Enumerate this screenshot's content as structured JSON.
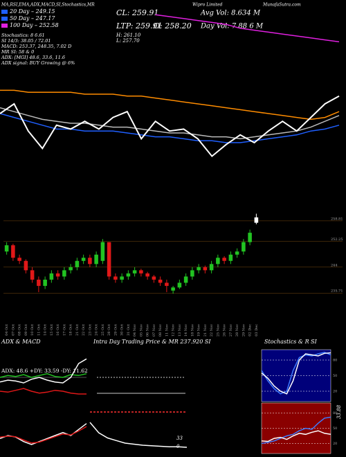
{
  "header": {
    "top_line": "MA,RSI,EMA,ADX,MACD,SI,Stochastics,MR",
    "company": "Wipro Limited",
    "site": "MunafaSutra.com",
    "legend": [
      {
        "label": "20 Day – 249.15",
        "color": "#1f5fff"
      },
      {
        "label": "50 Day – 247.17",
        "color": "#1f5fff"
      },
      {
        "label": "100 Day – 252.58",
        "color": "#e020e0"
      }
    ],
    "stats": [
      "Stochastics: 8      6.61",
      "SI 14/3: 38.05 / 72.01",
      "MACD: 253.37, 248.35, 7.02 D",
      "MR  SI: 58 & 0",
      "ADX: [MGI] 48.6, 33.6, 11.6",
      "ADX signal:          BUY Growing @ 6%"
    ],
    "cl": "CL: 259.91",
    "ltp": "LTP: 259.91",
    "open": "O: 258.20",
    "high": "H: 261.10",
    "low": "L: 257.70",
    "avg_vol": "Avg Vol: 8.634  M",
    "day_vol": "Day Vol: 7.88          6  M"
  },
  "chart_data": [
    {
      "type": "line",
      "ylim": [
        0,
        100
      ],
      "series": [
        {
          "color": "#e020e0",
          "values": [
            null,
            null,
            null,
            null,
            null,
            null,
            null,
            null,
            null,
            null,
            null,
            96,
            95,
            94,
            93,
            92,
            91,
            89,
            88,
            87,
            86,
            85,
            84,
            83,
            82
          ]
        },
        {
          "color": "#ff8c00",
          "values": [
            57,
            57,
            56,
            56,
            56,
            56,
            55,
            55,
            55,
            54,
            54,
            53,
            52,
            51,
            50,
            49,
            48,
            47,
            46,
            45,
            44,
            43,
            42,
            43,
            46
          ]
        },
        {
          "color": "#bbbbbb",
          "values": [
            48,
            46,
            44,
            42,
            41,
            40,
            40,
            39,
            38,
            38,
            37,
            36,
            35,
            35,
            34,
            33,
            33,
            32,
            33,
            34,
            35,
            36,
            38,
            41,
            44
          ]
        },
        {
          "color": "#1f5fff",
          "values": [
            45,
            43,
            41,
            39,
            37,
            37,
            36,
            36,
            36,
            35,
            34,
            33,
            33,
            32,
            31,
            31,
            30,
            30,
            31,
            32,
            33,
            34,
            36,
            37,
            39
          ]
        },
        {
          "color": "#ffffff",
          "values": [
            45,
            50,
            36,
            27,
            39,
            37,
            41,
            37,
            43,
            46,
            32,
            41,
            36,
            37,
            32,
            23,
            29,
            34,
            30,
            36,
            41,
            36,
            43,
            50,
            54
          ]
        }
      ]
    },
    {
      "type": "candlestick",
      "ylim": [
        232,
        263
      ],
      "yticks": [
        258.81,
        252.25,
        244,
        235.71
      ],
      "up_color": "#22c322",
      "down_color": "#e01818",
      "last_color": "#ffffff",
      "categories": [
        "04 Oct",
        "07 Oct",
        "08 Oct",
        "09 Oct",
        "10 Oct",
        "11 Oct",
        "14 Oct",
        "15 Oct",
        "16 Oct",
        "17 Oct",
        "18 Oct",
        "21 Oct",
        "22 Oct",
        "23 Oct",
        "24 Oct",
        "25 Oct",
        "28 Oct",
        "29 Oct",
        "30 Oct",
        "31 Oct",
        "04 Nov",
        "05 Nov",
        "06 Nov",
        "07 Nov",
        "08 Nov",
        "11 Nov",
        "12 Nov",
        "13 Nov",
        "14 Nov",
        "18 Nov",
        "19 Nov",
        "21 Nov",
        "22 Nov",
        "25 Nov",
        "26 Nov",
        "27 Nov",
        "28 Nov",
        "29 Nov",
        "02 Dec",
        "03 Dec"
      ],
      "open": [
        249,
        251,
        247,
        246,
        243,
        240,
        238,
        240,
        242,
        241,
        243,
        244,
        246,
        247,
        245,
        246,
        252,
        241,
        240,
        241,
        242,
        243,
        242,
        241,
        240,
        239,
        236.5,
        237.5,
        239,
        241,
        243,
        244,
        243,
        245,
        247,
        246,
        248,
        249,
        252,
        258.2
      ],
      "high": [
        252,
        251.5,
        248,
        246.5,
        244,
        241,
        241,
        243,
        243,
        244,
        245,
        247,
        248,
        248,
        249,
        253,
        252,
        242,
        242,
        243,
        244,
        243.5,
        242.5,
        241.5,
        241,
        240,
        238,
        240,
        242,
        244,
        245,
        244.5,
        246,
        248,
        247.5,
        249,
        250,
        253,
        256,
        261.1
      ],
      "low": [
        248,
        246,
        245,
        242,
        239,
        236,
        237,
        239,
        240,
        240,
        242,
        243,
        245,
        244,
        244,
        245,
        240,
        239,
        239,
        240,
        241,
        241,
        240,
        239,
        238,
        236,
        235.5,
        237,
        238,
        240,
        242,
        242,
        242,
        244,
        245,
        245,
        247,
        248,
        251,
        257.7
      ],
      "close": [
        251,
        247,
        246,
        243,
        240,
        238,
        240,
        242,
        241,
        243,
        244,
        246,
        247,
        245,
        248,
        252,
        241,
        240,
        241,
        242,
        243,
        242,
        241,
        240,
        239,
        238,
        237.5,
        239,
        241,
        243,
        244,
        243,
        245,
        247,
        246,
        248,
        249,
        252,
        255,
        259.91
      ]
    },
    {
      "type": "line",
      "title": "ADX  & MACD",
      "subtitle": "ADX: 48.6 +DY: 33.59 -DY: 11.62",
      "ylim": [
        0,
        60
      ],
      "series": [
        {
          "color": "#22c322",
          "values": [
            30,
            32,
            31,
            33,
            30,
            32,
            34,
            31,
            30,
            33,
            32,
            34
          ]
        },
        {
          "color": "#ffffff",
          "values": [
            25,
            27,
            26,
            24,
            28,
            30,
            27,
            25,
            24,
            30,
            45,
            50
          ]
        },
        {
          "color": "#e01818",
          "values": [
            15,
            14,
            16,
            18,
            15,
            13,
            14,
            16,
            15,
            13,
            12,
            12
          ]
        }
      ]
    },
    {
      "type": "line",
      "ylim": [
        -5,
        10
      ],
      "series": [
        {
          "color": "#ffffff",
          "values": [
            0,
            1,
            0.5,
            -1,
            -2,
            -1,
            0,
            1,
            2,
            1,
            3,
            5
          ]
        },
        {
          "color": "#e01818",
          "values": [
            0.5,
            0.8,
            0.6,
            -0.5,
            -1.5,
            -1.2,
            -0.3,
            0.6,
            1.5,
            1.2,
            2.5,
            4
          ]
        }
      ]
    },
    {
      "type": "line",
      "title": "Intra Day Trading Price  & MR  237.920 SI",
      "annotations": [
        "33",
        "0"
      ],
      "ylim": [
        230,
        250
      ],
      "series": [
        {
          "color": "#ff3030",
          "dash": true,
          "values": [
            238,
            238,
            238,
            238,
            238,
            238,
            238,
            238,
            238,
            238,
            238,
            238
          ]
        },
        {
          "color": "#ffffff",
          "values": [
            236,
            234,
            233,
            232.5,
            232,
            231.8,
            231.6,
            231.5,
            231.4,
            231.3,
            231.3,
            231.2
          ]
        }
      ]
    },
    {
      "type": "line",
      "title": "Stochastics & R          SI",
      "ylim": [
        0,
        100
      ],
      "yticks": [
        20,
        50,
        80
      ],
      "background": "#00007a",
      "series": [
        {
          "color": "#3d7bff",
          "values": [
            60,
            40,
            25,
            15,
            20,
            60,
            85,
            90,
            88,
            92,
            95,
            90
          ]
        },
        {
          "color": "#ffffff",
          "values": [
            55,
            45,
            30,
            20,
            15,
            40,
            80,
            92,
            90,
            88,
            93,
            94
          ]
        }
      ]
    },
    {
      "type": "line",
      "annotations": [
        "33.88"
      ],
      "ylim": [
        0,
        100
      ],
      "yticks": [
        20,
        50,
        80
      ],
      "background": "#8a0000",
      "series": [
        {
          "color": "#3d7bff",
          "values": [
            20,
            22,
            25,
            30,
            35,
            38,
            45,
            50,
            48,
            60,
            70,
            72
          ]
        },
        {
          "color": "#ffffff",
          "values": [
            25,
            24,
            30,
            32,
            28,
            35,
            40,
            38,
            42,
            45,
            40,
            38
          ]
        }
      ]
    }
  ]
}
